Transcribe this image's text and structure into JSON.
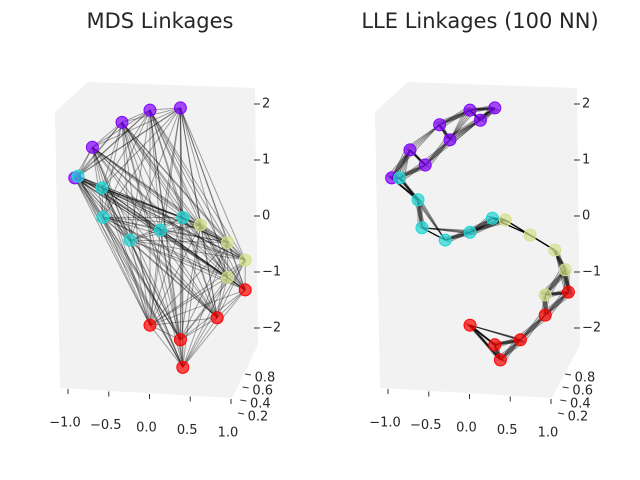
{
  "chart_data": [
    {
      "type": "scatter3d",
      "title": "MDS Linkages",
      "links": "all",
      "xlim": [
        -1,
        1
      ],
      "ylim": [
        0,
        1
      ],
      "zlim": [
        -2,
        2
      ],
      "xticks": [
        {
          "value": -1,
          "label": "−1.0"
        },
        {
          "value": -0.5,
          "label": "−0.5"
        },
        {
          "value": 0,
          "label": "0.0"
        },
        {
          "value": 0.5,
          "label": "0.5"
        },
        {
          "value": 1,
          "label": "1.0"
        }
      ],
      "yticks": [
        0.2,
        0.4,
        0.6,
        0.8
      ],
      "zticks": [
        {
          "value": -2,
          "label": "−2"
        },
        {
          "value": -1,
          "label": "−1"
        },
        0,
        1,
        2
      ],
      "series": [
        {
          "color": "#8000ff",
          "x": [
            -0.94,
            -0.69,
            -0.38,
            0,
            0.38
          ],
          "y": [
            0.5,
            0.4,
            0.6,
            0.5,
            0.5
          ],
          "z": [
            0.68,
            1.27,
            1.63,
            1.89,
            1.93
          ]
        },
        {
          "color": "#1fd6d6",
          "x": [
            -0.9,
            -0.63,
            -0.56,
            -0.25,
            0.13,
            0.38
          ],
          "y": [
            0.5,
            0.6,
            0.4,
            0.5,
            0.5,
            0.6
          ],
          "z": [
            0.71,
            0.46,
            0.02,
            -0.43,
            -0.25,
            -0.07
          ]
        },
        {
          "color": "#d4df8a",
          "x": [
            0.63,
            1.0,
            1.19,
            0.94
          ],
          "y": [
            0.5,
            0.4,
            0.5,
            0.6
          ],
          "z": [
            -0.16,
            -0.43,
            -0.79,
            -1.14
          ]
        },
        {
          "color": "#ff0000",
          "x": [
            1.19,
            0.81,
            0.38,
            0.44,
            0
          ],
          "y": [
            0.5,
            0.6,
            0.5,
            0.4,
            0.5
          ],
          "z": [
            -1.32,
            -1.86,
            -2.21,
            -2.66,
            -1.95
          ]
        }
      ]
    },
    {
      "type": "scatter3d",
      "title": "LLE Linkages (100 NN)",
      "links": "neighbors",
      "xlim": [
        -1,
        1
      ],
      "ylim": [
        0,
        1
      ],
      "zlim": [
        -2,
        2
      ],
      "xticks": [
        {
          "value": -1,
          "label": "−1.0"
        },
        {
          "value": -0.5,
          "label": "−0.5"
        },
        {
          "value": 0,
          "label": "0.0"
        },
        {
          "value": 0.5,
          "label": "0.5"
        },
        {
          "value": 1,
          "label": "1.0"
        }
      ],
      "yticks": [
        0.2,
        0.4,
        0.6,
        0.8
      ],
      "zticks": [
        {
          "value": -2,
          "label": "−2"
        },
        {
          "value": -1,
          "label": "−1"
        },
        0,
        1,
        2
      ],
      "series": [
        {
          "color": "#8000ff",
          "x": [
            -0.98,
            -0.75,
            -0.38,
            0,
            0.31,
            0.13,
            -0.25,
            -0.56
          ],
          "y": [
            0.5,
            0.5,
            0.5,
            0.5,
            0.5,
            0.5,
            0.5,
            0.5
          ],
          "z": [
            0.68,
            1.18,
            1.63,
            1.89,
            1.93,
            1.71,
            1.36,
            0.91
          ]
        },
        {
          "color": "#1fd6d6",
          "x": [
            -0.88,
            -0.65,
            -0.6,
            -0.31,
            0,
            0.28
          ],
          "y": [
            0.5,
            0.5,
            0.5,
            0.5,
            0.5,
            0.5
          ],
          "z": [
            0.68,
            0.29,
            -0.21,
            -0.43,
            -0.29,
            -0.04
          ]
        },
        {
          "color": "#d4df8a",
          "x": [
            0.44,
            0.75,
            1.06,
            1.19,
            0.94
          ],
          "y": [
            0.5,
            0.5,
            0.5,
            0.5,
            0.5
          ],
          "z": [
            -0.07,
            -0.34,
            -0.61,
            -0.96,
            -1.41
          ]
        },
        {
          "color": "#ff0000",
          "x": [
            1.23,
            0.94,
            0.63,
            0.38,
            0.31,
            0
          ],
          "y": [
            0.5,
            0.5,
            0.5,
            0.5,
            0.5,
            0.5
          ],
          "z": [
            -1.36,
            -1.77,
            -2.21,
            -2.57,
            -2.3,
            -1.95
          ]
        }
      ]
    }
  ]
}
